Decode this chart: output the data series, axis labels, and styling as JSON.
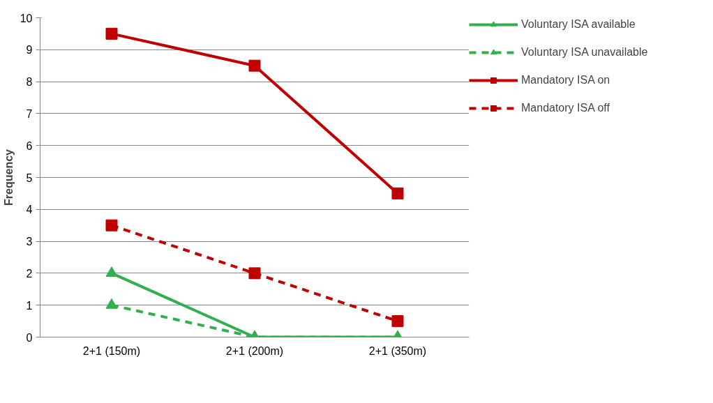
{
  "chart_data": {
    "type": "line",
    "ylabel": "Frequency",
    "categories": [
      "2+1 (150m)",
      "2+1 (200m)",
      "2+1 (350m)"
    ],
    "series": [
      {
        "name": "Voluntary ISA available",
        "color": "#33b04e",
        "values": [
          2,
          0,
          0
        ],
        "marker": "triangle",
        "line_style": "solid"
      },
      {
        "name": "Voluntary ISA unavailable",
        "color": "#33b04e",
        "values": [
          1,
          0,
          0
        ],
        "marker": "triangle",
        "line_style": "dashed"
      },
      {
        "name": "Mandatory ISA on",
        "color": "#c00000",
        "values": [
          9.5,
          8.5,
          4.5
        ],
        "marker": "square",
        "line_style": "solid"
      },
      {
        "name": "Mandatory ISA off",
        "color": "#c00000",
        "values": [
          3.5,
          2,
          0.5
        ],
        "marker": "square",
        "line_style": "dashed"
      }
    ],
    "ylim": [
      0,
      10
    ],
    "yticks": [
      0,
      1,
      2,
      3,
      4,
      5,
      6,
      7,
      8,
      9,
      10
    ],
    "grid": "y",
    "legend": "top right"
  }
}
